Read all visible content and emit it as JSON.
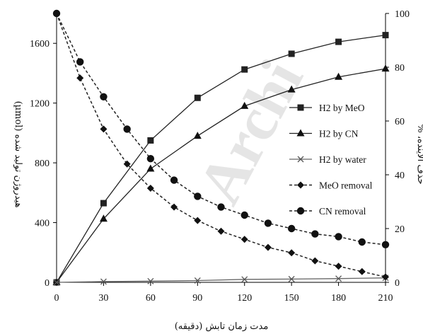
{
  "chart_data": {
    "type": "line",
    "watermark": "Archi",
    "xlabel": "مدت زمان تابش (دقیقه)",
    "ylabel_left": "هیدروژن تولید شده (µmol)",
    "ylabel_right": "حذف آلاینده، %",
    "xlim": [
      0,
      210
    ],
    "ylim_left": [
      0,
      1800
    ],
    "ylim_right": [
      0,
      100
    ],
    "x_ticks": [
      "0",
      "30",
      "60",
      "90",
      "120",
      "150",
      "180",
      "210"
    ],
    "y_left_ticks": [
      "0",
      "400",
      "800",
      "1200",
      "1600"
    ],
    "y_right_ticks": [
      "0",
      "20",
      "40",
      "60",
      "80",
      "100"
    ],
    "grid": false,
    "legend_position": "center-right",
    "series": [
      {
        "name": "H2 by MeO",
        "axis": "left",
        "marker": "square",
        "dashed": false,
        "x": [
          0,
          30,
          60,
          90,
          120,
          150,
          180,
          210
        ],
        "y": [
          0,
          530,
          950,
          1235,
          1425,
          1530,
          1610,
          1655
        ]
      },
      {
        "name": "H2 by CN",
        "axis": "left",
        "marker": "triangle",
        "dashed": false,
        "x": [
          0,
          30,
          60,
          90,
          120,
          150,
          180,
          210
        ],
        "y": [
          0,
          425,
          760,
          980,
          1180,
          1290,
          1375,
          1430
        ]
      },
      {
        "name": "H2 by water",
        "axis": "left",
        "marker": "x",
        "dashed": false,
        "x": [
          0,
          30,
          60,
          90,
          120,
          150,
          180,
          210
        ],
        "y": [
          0,
          5,
          8,
          12,
          20,
          22,
          25,
          30
        ]
      },
      {
        "name": "MeO removal",
        "axis": "right",
        "marker": "diamond",
        "dashed": true,
        "x": [
          0,
          15,
          30,
          45,
          60,
          75,
          90,
          105,
          120,
          135,
          150,
          165,
          180,
          195,
          210
        ],
        "y": [
          100,
          76,
          57,
          44,
          35,
          28,
          23,
          19,
          16,
          13,
          11,
          8,
          6,
          4,
          2
        ]
      },
      {
        "name": "CN removal",
        "axis": "right",
        "marker": "circle",
        "dashed": true,
        "x": [
          0,
          15,
          30,
          45,
          60,
          75,
          90,
          105,
          120,
          135,
          150,
          165,
          180,
          195,
          210
        ],
        "y": [
          100,
          82,
          69,
          57,
          46,
          38,
          32,
          28,
          25,
          22,
          20,
          18,
          17,
          15,
          14
        ]
      }
    ]
  }
}
